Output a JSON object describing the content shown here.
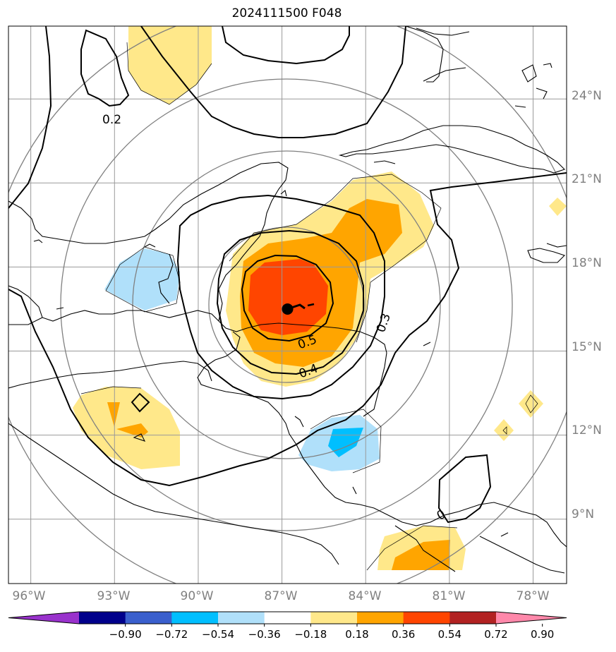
{
  "title": "2024111500 F048",
  "map": {
    "lon_range": [
      -96.8,
      -76.8
    ],
    "lat_range": [
      6.7,
      26.6
    ],
    "lon_ticks": [
      "96°W",
      "93°W",
      "90°W",
      "87°W",
      "84°W",
      "81°W",
      "78°W"
    ],
    "lat_ticks": [
      "24°N",
      "21°N",
      "18°N",
      "15°N",
      "12°N",
      "9°N"
    ],
    "grid": true,
    "gridline_color": "#999999",
    "tick_label_color": "#808080",
    "storm_center": {
      "lon": -86.8,
      "lat": 16.5
    },
    "contour_labels": [
      "0.2",
      "0.3",
      "0.4",
      "0.5",
      "0"
    ]
  },
  "colorbar": {
    "ticks": [
      "−0.90",
      "−0.72",
      "−0.54",
      "−0.36",
      "−0.18",
      "0.18",
      "0.36",
      "0.54",
      "0.72",
      "0.90"
    ],
    "colors": [
      "#9932cc",
      "#00008b",
      "#3a5fcd",
      "#00bfff",
      "#b0e0fa",
      "#ffffff",
      "#ffe88a",
      "#ffa500",
      "#ff4500",
      "#b22222",
      "#ff88aa"
    ],
    "extend": "both"
  }
}
